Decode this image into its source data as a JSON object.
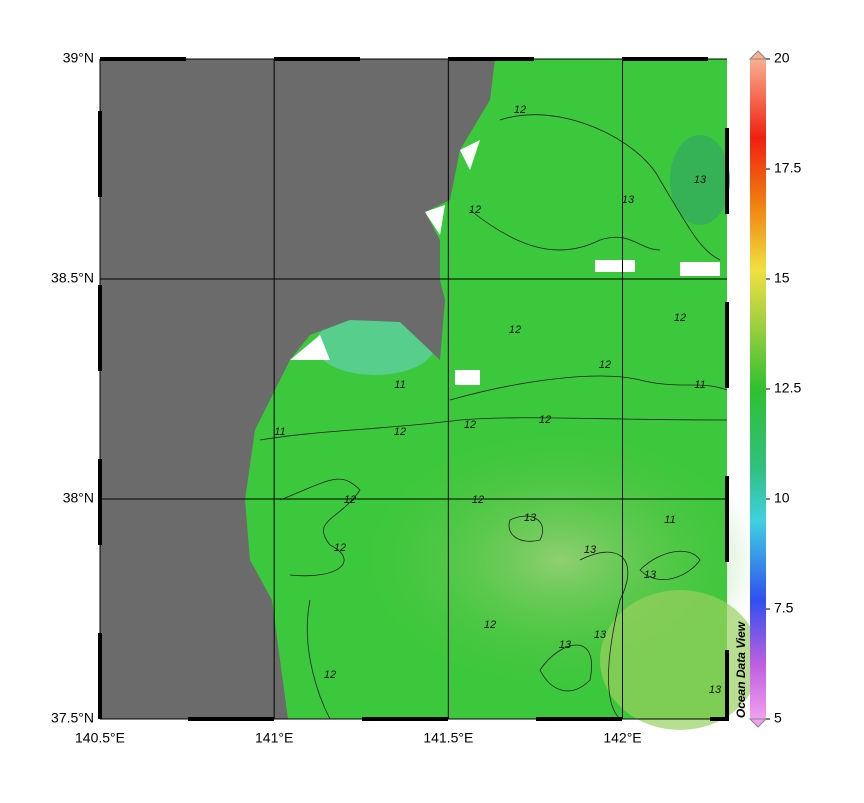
{
  "map": {
    "xlim": [
      140.5,
      142.3
    ],
    "ylim": [
      37.5,
      39
    ],
    "xticks": [
      {
        "value": 140.5,
        "label": "140.5°E"
      },
      {
        "value": 141,
        "label": "141°E"
      },
      {
        "value": 141.5,
        "label": "141.5°E"
      },
      {
        "value": 142,
        "label": "142°E"
      }
    ],
    "yticks": [
      {
        "value": 37.5,
        "label": "37.5°N"
      },
      {
        "value": 38,
        "label": "38°N"
      },
      {
        "value": 38.5,
        "label": "38.5°N"
      },
      {
        "value": 39,
        "label": "39°N"
      }
    ],
    "contour_labels": [
      "12",
      "12",
      "13",
      "11",
      "12",
      "12",
      "11",
      "12",
      "12",
      "12",
      "11",
      "12",
      "12",
      "12",
      "12",
      "12",
      "13",
      "13",
      "13",
      "13",
      "13",
      "13",
      "12",
      "11",
      "13"
    ]
  },
  "colorbar": {
    "range": [
      5,
      20
    ],
    "ticks": [
      5,
      7.5,
      10,
      12.5,
      15,
      17.5,
      20
    ],
    "label": "Ocean Data View"
  }
}
